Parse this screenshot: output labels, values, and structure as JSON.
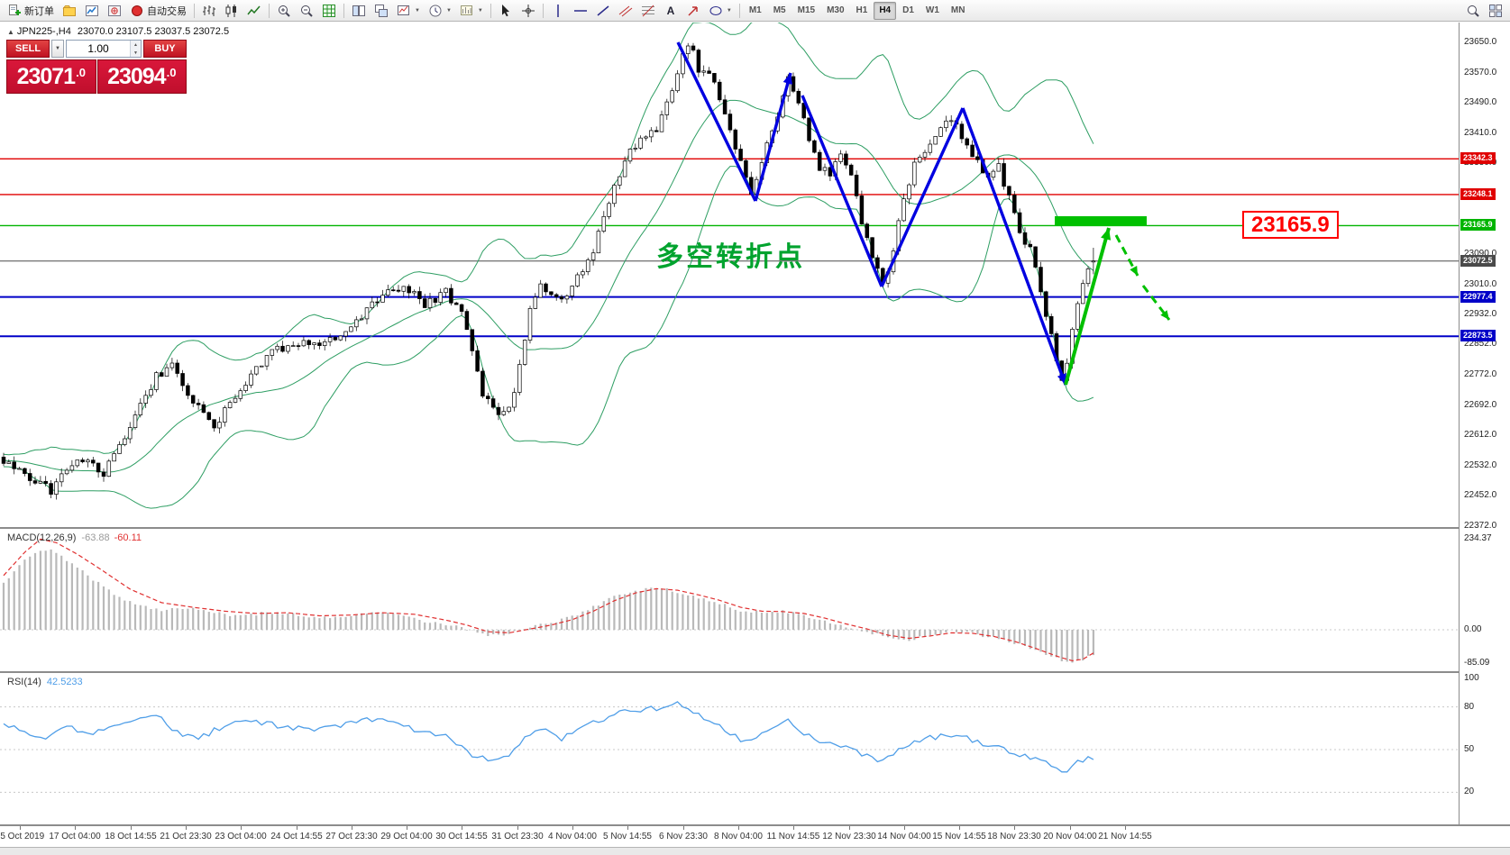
{
  "toolbar": {
    "new_order_label": "新订单",
    "autotrading_label": "自动交易",
    "timeframes": [
      {
        "label": "M1"
      },
      {
        "label": "M5"
      },
      {
        "label": "M15"
      },
      {
        "label": "M30"
      },
      {
        "label": "H1"
      },
      {
        "label": "H4"
      },
      {
        "label": "D1"
      },
      {
        "label": "W1"
      },
      {
        "label": "MN"
      }
    ]
  },
  "chart": {
    "symbol_title": "JPN225-,H4",
    "ohlc_text": "23070.0 23107.5 23037.5 23072.5",
    "trade_panel": {
      "sell_label": "SELL",
      "buy_label": "BUY",
      "volume": "1.00",
      "sell_price_main": "23071",
      "sell_price_dec": ".0",
      "buy_price_main": "23094",
      "buy_price_dec": ".0"
    },
    "annotation_text": "多空转折点",
    "annotation_color": "#00a32e",
    "key_level_label": "23165.9",
    "levels": [
      {
        "price": 23342.3,
        "label": "23342.3",
        "color": "#e00000",
        "width": 1.4
      },
      {
        "price": 23248.1,
        "label": "23248.1",
        "color": "#e00000",
        "width": 1.4
      },
      {
        "price": 23165.9,
        "label": "23165.9",
        "color": "#00b400",
        "width": 1.4
      },
      {
        "price": 23072.5,
        "label": "23072.5",
        "color": "#4a4a4a",
        "width": 1
      },
      {
        "price": 22977.4,
        "label": "22977.4",
        "color": "#0000c8",
        "width": 2
      },
      {
        "price": 22873.5,
        "label": "22873.5",
        "color": "#0000c8",
        "width": 2
      }
    ],
    "y_ticks": [
      "23650.0",
      "23570.0",
      "23490.0",
      "23410.0",
      "23330.0",
      "23090.0",
      "23010.0",
      "22932.0",
      "22852.0",
      "22772.0",
      "22692.0",
      "22612.0",
      "22532.0",
      "22452.0",
      "22372.0"
    ],
    "x_labels": [
      "15 Oct 2019",
      "17 Oct 04:00",
      "18 Oct 14:55",
      "21 Oct 23:30",
      "23 Oct 04:00",
      "24 Oct 14:55",
      "27 Oct 23:30",
      "29 Oct 04:00",
      "30 Oct 14:55",
      "31 Oct 23:30",
      "4 Nov 04:00",
      "5 Nov 14:55",
      "6 Nov 23:30",
      "8 Nov 04:00",
      "11 Nov 14:55",
      "12 Nov 23:30",
      "14 Nov 04:00",
      "15 Nov 14:55",
      "18 Nov 23:30",
      "20 Nov 04:00",
      "21 Nov 14:55"
    ]
  },
  "macd_panel": {
    "name": "MACD(12,26,9)",
    "main_value": "-63.88",
    "signal_value": "-60.11",
    "ticks": [
      {
        "label": "234.37",
        "value": 234.37
      },
      {
        "label": "0.00",
        "value": 0
      },
      {
        "label": "-85.09",
        "value": -85.09
      }
    ]
  },
  "rsi_panel": {
    "name": "RSI(14)",
    "value": "42.5233",
    "ticks": [
      {
        "label": "100",
        "value": 100
      },
      {
        "label": "80",
        "value": 80
      },
      {
        "label": "50",
        "value": 50
      },
      {
        "label": "20",
        "value": 20
      }
    ],
    "levels": [
      80,
      50,
      20
    ]
  },
  "chart_data": {
    "type": "candlestick",
    "symbol": "JPN225-",
    "timeframe": "H4",
    "last_ohlc": {
      "open": 23070.0,
      "high": 23107.5,
      "low": 23037.5,
      "close": 23072.5
    },
    "price_range": [
      22372,
      23650
    ],
    "candle_count": 208,
    "price_path": [
      [
        0,
        22545
      ],
      [
        5,
        22500
      ],
      [
        9,
        22468
      ],
      [
        14,
        22555
      ],
      [
        19,
        22515
      ],
      [
        24,
        22630
      ],
      [
        29,
        22770
      ],
      [
        32,
        22800
      ],
      [
        36,
        22700
      ],
      [
        40,
        22630
      ],
      [
        45,
        22740
      ],
      [
        50,
        22820
      ],
      [
        55,
        22860
      ],
      [
        60,
        22850
      ],
      [
        65,
        22880
      ],
      [
        68,
        22920
      ],
      [
        72,
        22990
      ],
      [
        76,
        23000
      ],
      [
        80,
        22960
      ],
      [
        84,
        22990
      ],
      [
        87,
        22940
      ],
      [
        89,
        22840
      ],
      [
        91,
        22720
      ],
      [
        94,
        22660
      ],
      [
        96,
        22680
      ],
      [
        98,
        22790
      ],
      [
        100,
        22950
      ],
      [
        102,
        23010
      ],
      [
        104,
        22990
      ],
      [
        106,
        22960
      ],
      [
        109,
        23030
      ],
      [
        112,
        23100
      ],
      [
        115,
        23230
      ],
      [
        118,
        23340
      ],
      [
        121,
        23390
      ],
      [
        124,
        23420
      ],
      [
        127,
        23520
      ],
      [
        129,
        23610
      ],
      [
        130,
        23645
      ],
      [
        131,
        23620
      ],
      [
        132,
        23560
      ],
      [
        134,
        23580
      ],
      [
        136,
        23500
      ],
      [
        138,
        23420
      ],
      [
        140,
        23330
      ],
      [
        142,
        23240
      ],
      [
        144,
        23330
      ],
      [
        146,
        23420
      ],
      [
        148,
        23500
      ],
      [
        149,
        23555
      ],
      [
        151,
        23480
      ],
      [
        153,
        23400
      ],
      [
        155,
        23320
      ],
      [
        157,
        23300
      ],
      [
        159,
        23350
      ],
      [
        161,
        23300
      ],
      [
        163,
        23180
      ],
      [
        165,
        23080
      ],
      [
        167,
        23010
      ],
      [
        169,
        23100
      ],
      [
        171,
        23240
      ],
      [
        173,
        23330
      ],
      [
        175,
        23350
      ],
      [
        177,
        23400
      ],
      [
        179,
        23450
      ],
      [
        181,
        23430
      ],
      [
        183,
        23380
      ],
      [
        185,
        23330
      ],
      [
        187,
        23290
      ],
      [
        189,
        23320
      ],
      [
        191,
        23240
      ],
      [
        193,
        23150
      ],
      [
        195,
        23100
      ],
      [
        197,
        23000
      ],
      [
        199,
        22870
      ],
      [
        201,
        22760
      ],
      [
        202,
        22800
      ],
      [
        203,
        22890
      ],
      [
        205,
        23010
      ],
      [
        206,
        23050
      ],
      [
        207,
        23072
      ]
    ],
    "bollinger": {
      "period": 20,
      "deviation": 2
    },
    "macd": {
      "params": "12,26,9",
      "main_path": [
        [
          0,
          120
        ],
        [
          3,
          170
        ],
        [
          6,
          200
        ],
        [
          9,
          205
        ],
        [
          12,
          180
        ],
        [
          16,
          140
        ],
        [
          20,
          100
        ],
        [
          25,
          65
        ],
        [
          30,
          52
        ],
        [
          35,
          58
        ],
        [
          40,
          44
        ],
        [
          45,
          34
        ],
        [
          50,
          44
        ],
        [
          55,
          40
        ],
        [
          60,
          30
        ],
        [
          65,
          36
        ],
        [
          70,
          44
        ],
        [
          75,
          38
        ],
        [
          80,
          22
        ],
        [
          85,
          12
        ],
        [
          88,
          2
        ],
        [
          92,
          -16
        ],
        [
          96,
          -10
        ],
        [
          100,
          8
        ],
        [
          104,
          18
        ],
        [
          108,
          34
        ],
        [
          112,
          58
        ],
        [
          116,
          88
        ],
        [
          120,
          102
        ],
        [
          124,
          108
        ],
        [
          128,
          98
        ],
        [
          132,
          84
        ],
        [
          136,
          68
        ],
        [
          140,
          50
        ],
        [
          144,
          44
        ],
        [
          148,
          48
        ],
        [
          152,
          38
        ],
        [
          156,
          24
        ],
        [
          160,
          8
        ],
        [
          164,
          -6
        ],
        [
          168,
          -20
        ],
        [
          172,
          -26
        ],
        [
          176,
          -14
        ],
        [
          180,
          -4
        ],
        [
          184,
          -10
        ],
        [
          188,
          -20
        ],
        [
          192,
          -34
        ],
        [
          196,
          -54
        ],
        [
          200,
          -74
        ],
        [
          203,
          -85
        ],
        [
          205,
          -77
        ],
        [
          207,
          -63.88
        ]
      ],
      "signal_path": [
        [
          0,
          140
        ],
        [
          4,
          200
        ],
        [
          7,
          234
        ],
        [
          10,
          225
        ],
        [
          14,
          195
        ],
        [
          18,
          160
        ],
        [
          24,
          105
        ],
        [
          30,
          70
        ],
        [
          36,
          58
        ],
        [
          42,
          48
        ],
        [
          48,
          42
        ],
        [
          54,
          44
        ],
        [
          60,
          36
        ],
        [
          66,
          38
        ],
        [
          72,
          44
        ],
        [
          78,
          40
        ],
        [
          84,
          25
        ],
        [
          88,
          12
        ],
        [
          92,
          -5
        ],
        [
          96,
          -8
        ],
        [
          100,
          2
        ],
        [
          104,
          12
        ],
        [
          108,
          26
        ],
        [
          112,
          48
        ],
        [
          116,
          75
        ],
        [
          120,
          95
        ],
        [
          124,
          106
        ],
        [
          128,
          102
        ],
        [
          132,
          90
        ],
        [
          136,
          76
        ],
        [
          140,
          58
        ],
        [
          144,
          48
        ],
        [
          148,
          47
        ],
        [
          152,
          42
        ],
        [
          156,
          30
        ],
        [
          160,
          15
        ],
        [
          164,
          2
        ],
        [
          168,
          -14
        ],
        [
          172,
          -22
        ],
        [
          176,
          -16
        ],
        [
          180,
          -8
        ],
        [
          184,
          -9
        ],
        [
          188,
          -17
        ],
        [
          192,
          -30
        ],
        [
          196,
          -48
        ],
        [
          200,
          -68
        ],
        [
          203,
          -80
        ],
        [
          205,
          -76
        ],
        [
          207,
          -60.11
        ]
      ]
    },
    "rsi": {
      "period": 14,
      "path": [
        [
          0,
          68
        ],
        [
          4,
          62
        ],
        [
          8,
          58
        ],
        [
          12,
          66
        ],
        [
          16,
          60
        ],
        [
          20,
          67
        ],
        [
          25,
          72
        ],
        [
          29,
          74
        ],
        [
          33,
          62
        ],
        [
          37,
          58
        ],
        [
          41,
          65
        ],
        [
          45,
          70
        ],
        [
          50,
          68
        ],
        [
          55,
          65
        ],
        [
          60,
          64
        ],
        [
          65,
          68
        ],
        [
          70,
          71
        ],
        [
          75,
          68
        ],
        [
          80,
          62
        ],
        [
          84,
          60
        ],
        [
          87,
          52
        ],
        [
          90,
          44
        ],
        [
          94,
          42
        ],
        [
          97,
          50
        ],
        [
          100,
          62
        ],
        [
          103,
          63
        ],
        [
          106,
          58
        ],
        [
          110,
          65
        ],
        [
          114,
          72
        ],
        [
          118,
          77
        ],
        [
          122,
          78
        ],
        [
          126,
          80
        ],
        [
          128,
          83
        ],
        [
          130,
          80
        ],
        [
          132,
          74
        ],
        [
          135,
          70
        ],
        [
          138,
          62
        ],
        [
          141,
          55
        ],
        [
          144,
          62
        ],
        [
          147,
          68
        ],
        [
          149,
          71
        ],
        [
          152,
          62
        ],
        [
          155,
          55
        ],
        [
          158,
          54
        ],
        [
          161,
          52
        ],
        [
          164,
          45
        ],
        [
          167,
          42
        ],
        [
          170,
          50
        ],
        [
          173,
          56
        ],
        [
          176,
          58
        ],
        [
          179,
          61
        ],
        [
          182,
          60
        ],
        [
          185,
          55
        ],
        [
          188,
          53
        ],
        [
          191,
          48
        ],
        [
          194,
          45
        ],
        [
          197,
          42
        ],
        [
          200,
          36
        ],
        [
          202,
          34
        ],
        [
          204,
          42
        ],
        [
          206,
          44
        ],
        [
          207,
          42.5
        ]
      ]
    },
    "drawings": {
      "blue_segments": [
        [
          752,
          22,
          838,
          198
        ],
        [
          838,
          198,
          877,
          56
        ],
        [
          890,
          81,
          978,
          293
        ],
        [
          978,
          293,
          1068,
          95
        ],
        [
          1068,
          95,
          1182,
          402
        ]
      ],
      "blue_arrowheads": [
        [
          877,
          56,
          838,
          198
        ],
        [
          1182,
          402,
          1068,
          95
        ]
      ],
      "green_arrow": [
        1182,
        402,
        1230,
        228
      ],
      "green_dashed": [
        [
          1238,
          236,
          1262,
          281
        ],
        [
          1268,
          292,
          1297,
          330
        ]
      ],
      "green_bar": {
        "x": 1170,
        "y": 215,
        "w": 102,
        "h": 11
      },
      "colors": {
        "zigzag": "#0000e0",
        "arrow": "#00c000"
      }
    }
  }
}
